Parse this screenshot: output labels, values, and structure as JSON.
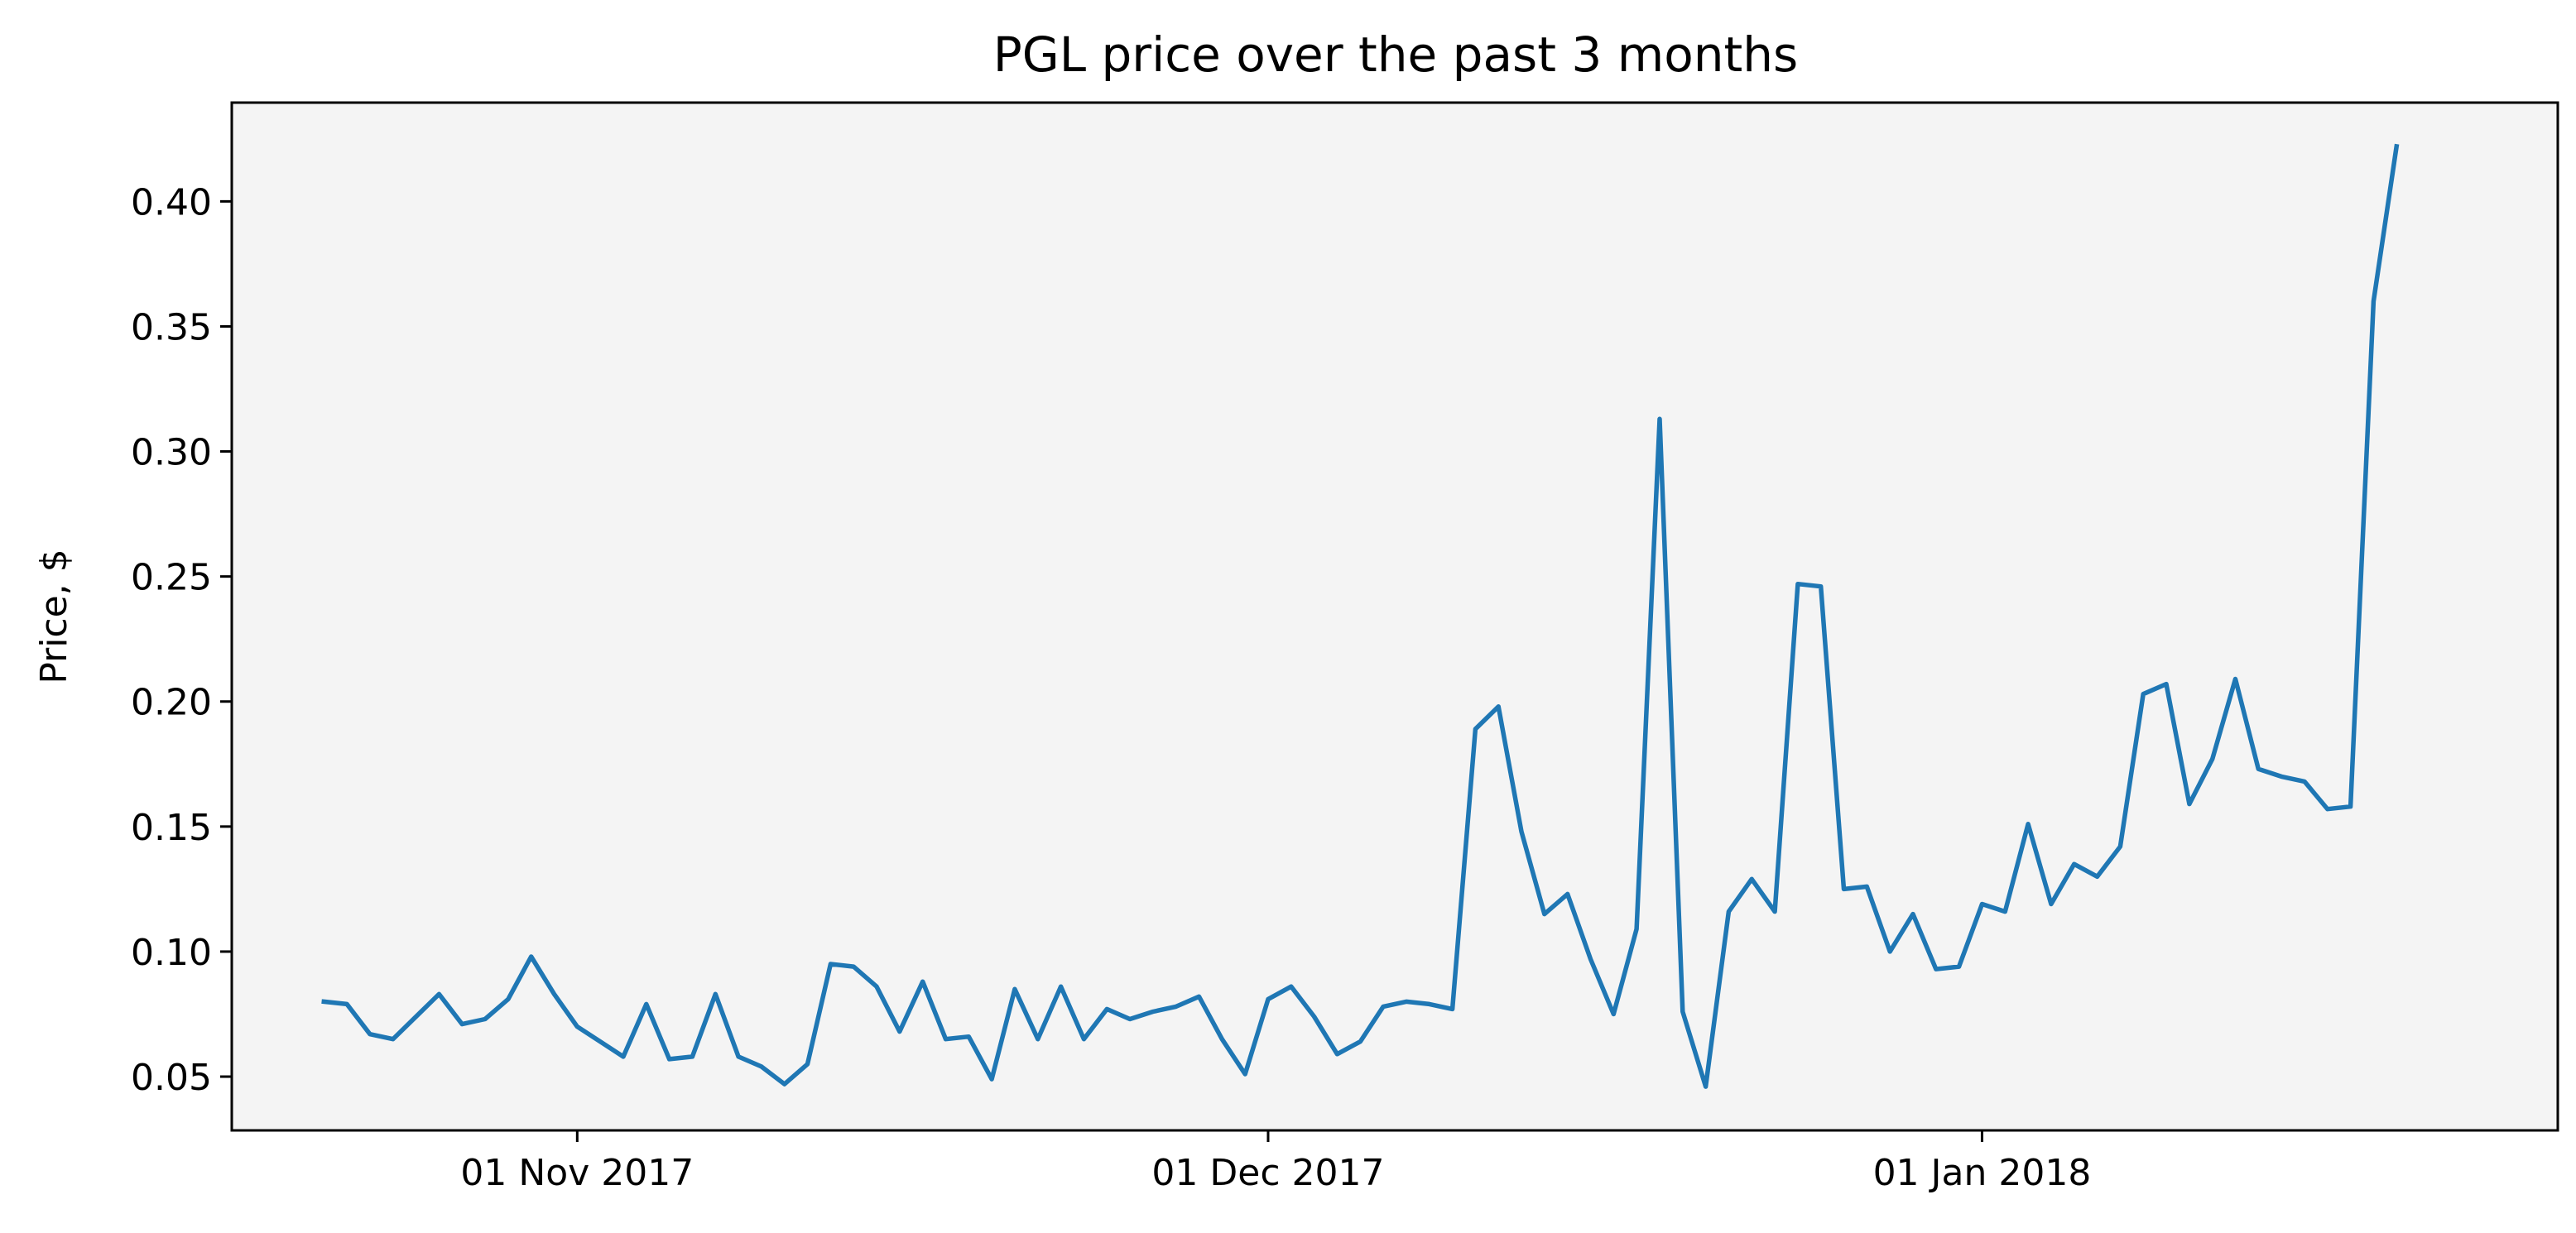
{
  "chart_data": {
    "type": "line",
    "title": "PGL price over the past 3 months",
    "xlabel": "",
    "ylabel": "Price, $",
    "xlim": [
      "2017-10-17",
      "2018-01-26"
    ],
    "ylim": [
      0.0285,
      0.4395
    ],
    "grid": false,
    "background": "#f4f4f4",
    "x_ticks": [
      {
        "date": "2017-11-01",
        "label": "01 Nov 2017"
      },
      {
        "date": "2017-12-01",
        "label": "01 Dec 2017"
      },
      {
        "date": "2018-01-01",
        "label": "01 Jan 2018"
      }
    ],
    "y_ticks": [
      {
        "value": 0.05,
        "label": "0.05"
      },
      {
        "value": 0.1,
        "label": "0.10"
      },
      {
        "value": 0.15,
        "label": "0.15"
      },
      {
        "value": 0.2,
        "label": "0.20"
      },
      {
        "value": 0.25,
        "label": "0.25"
      },
      {
        "value": 0.3,
        "label": "0.30"
      },
      {
        "value": 0.35,
        "label": "0.35"
      },
      {
        "value": 0.4,
        "label": "0.40"
      }
    ],
    "series": [
      {
        "color": "#1f77b4",
        "points": [
          [
            "2017-10-21",
            0.08
          ],
          [
            "2017-10-22",
            0.079
          ],
          [
            "2017-10-23",
            0.067
          ],
          [
            "2017-10-24",
            0.065
          ],
          [
            "2017-10-25",
            0.074
          ],
          [
            "2017-10-26",
            0.083
          ],
          [
            "2017-10-27",
            0.071
          ],
          [
            "2017-10-28",
            0.073
          ],
          [
            "2017-10-29",
            0.081
          ],
          [
            "2017-10-30",
            0.098
          ],
          [
            "2017-10-31",
            0.083
          ],
          [
            "2017-11-01",
            0.07
          ],
          [
            "2017-11-02",
            0.064
          ],
          [
            "2017-11-03",
            0.058
          ],
          [
            "2017-11-04",
            0.079
          ],
          [
            "2017-11-05",
            0.057
          ],
          [
            "2017-11-06",
            0.058
          ],
          [
            "2017-11-07",
            0.083
          ],
          [
            "2017-11-08",
            0.058
          ],
          [
            "2017-11-09",
            0.054
          ],
          [
            "2017-11-10",
            0.047
          ],
          [
            "2017-11-11",
            0.055
          ],
          [
            "2017-11-12",
            0.095
          ],
          [
            "2017-11-13",
            0.094
          ],
          [
            "2017-11-14",
            0.086
          ],
          [
            "2017-11-15",
            0.068
          ],
          [
            "2017-11-16",
            0.088
          ],
          [
            "2017-11-17",
            0.065
          ],
          [
            "2017-11-18",
            0.066
          ],
          [
            "2017-11-19",
            0.049
          ],
          [
            "2017-11-20",
            0.085
          ],
          [
            "2017-11-21",
            0.065
          ],
          [
            "2017-11-22",
            0.086
          ],
          [
            "2017-11-23",
            0.065
          ],
          [
            "2017-11-24",
            0.077
          ],
          [
            "2017-11-25",
            0.073
          ],
          [
            "2017-11-26",
            0.076
          ],
          [
            "2017-11-27",
            0.078
          ],
          [
            "2017-11-28",
            0.082
          ],
          [
            "2017-11-29",
            0.065
          ],
          [
            "2017-11-30",
            0.051
          ],
          [
            "2017-12-01",
            0.081
          ],
          [
            "2017-12-02",
            0.086
          ],
          [
            "2017-12-03",
            0.074
          ],
          [
            "2017-12-04",
            0.059
          ],
          [
            "2017-12-05",
            0.064
          ],
          [
            "2017-12-06",
            0.078
          ],
          [
            "2017-12-07",
            0.08
          ],
          [
            "2017-12-08",
            0.079
          ],
          [
            "2017-12-09",
            0.077
          ],
          [
            "2017-12-10",
            0.189
          ],
          [
            "2017-12-11",
            0.198
          ],
          [
            "2017-12-12",
            0.148
          ],
          [
            "2017-12-13",
            0.115
          ],
          [
            "2017-12-14",
            0.123
          ],
          [
            "2017-12-15",
            0.097
          ],
          [
            "2017-12-16",
            0.075
          ],
          [
            "2017-12-17",
            0.109
          ],
          [
            "2017-12-18",
            0.313
          ],
          [
            "2017-12-19",
            0.076
          ],
          [
            "2017-12-20",
            0.046
          ],
          [
            "2017-12-21",
            0.116
          ],
          [
            "2017-12-22",
            0.129
          ],
          [
            "2017-12-23",
            0.116
          ],
          [
            "2017-12-24",
            0.247
          ],
          [
            "2017-12-25",
            0.246
          ],
          [
            "2017-12-26",
            0.125
          ],
          [
            "2017-12-27",
            0.126
          ],
          [
            "2017-12-28",
            0.1
          ],
          [
            "2017-12-29",
            0.115
          ],
          [
            "2017-12-30",
            0.093
          ],
          [
            "2017-12-31",
            0.094
          ],
          [
            "2018-01-01",
            0.119
          ],
          [
            "2018-01-02",
            0.116
          ],
          [
            "2018-01-03",
            0.151
          ],
          [
            "2018-01-04",
            0.119
          ],
          [
            "2018-01-05",
            0.135
          ],
          [
            "2018-01-06",
            0.13
          ],
          [
            "2018-01-07",
            0.142
          ],
          [
            "2018-01-08",
            0.203
          ],
          [
            "2018-01-09",
            0.207
          ],
          [
            "2018-01-10",
            0.159
          ],
          [
            "2018-01-11",
            0.177
          ],
          [
            "2018-01-12",
            0.209
          ],
          [
            "2018-01-13",
            0.173
          ],
          [
            "2018-01-14",
            0.17
          ],
          [
            "2018-01-15",
            0.168
          ],
          [
            "2018-01-16",
            0.157
          ],
          [
            "2018-01-17",
            0.158
          ],
          [
            "2018-01-18",
            0.36
          ],
          [
            "2018-01-19",
            0.422
          ]
        ]
      }
    ]
  }
}
